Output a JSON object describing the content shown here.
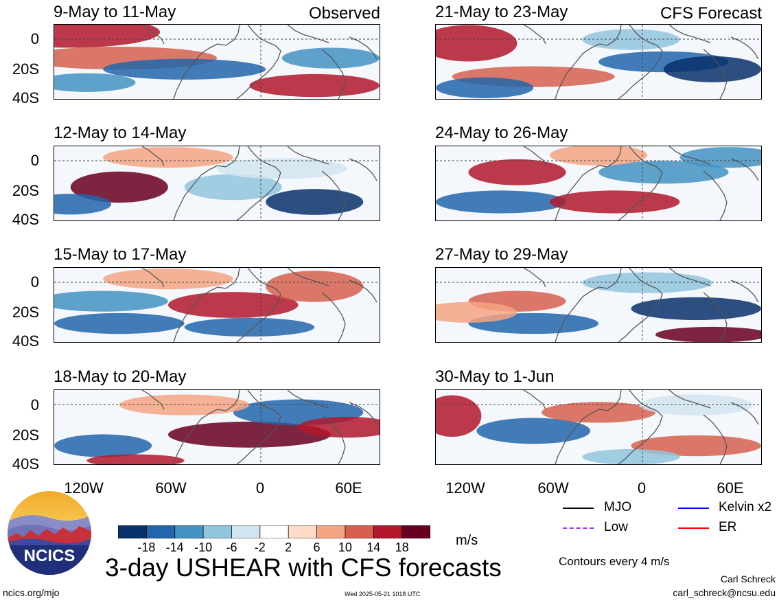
{
  "colors": {
    "scale": [
      "#08306b",
      "#2166ac",
      "#4393c3",
      "#92c5de",
      "#d1e5f0",
      "#ffffff",
      "#fddbc7",
      "#f4a582",
      "#d6604d",
      "#b2182b",
      "#67001f"
    ],
    "mjo": "#000000",
    "kelvin": "#0000ff",
    "low": "#9b30ff",
    "er": "#ff0000",
    "coast": "#555555"
  },
  "panels": [
    {
      "title": "9-May to 11-May",
      "tag": "Observed"
    },
    {
      "title": "12-May to 14-May",
      "tag": ""
    },
    {
      "title": "15-May to 17-May",
      "tag": ""
    },
    {
      "title": "18-May to 20-May",
      "tag": ""
    },
    {
      "title": "21-May to 23-May",
      "tag": "CFS Forecast"
    },
    {
      "title": "24-May to 26-May",
      "tag": ""
    },
    {
      "title": "27-May to 29-May",
      "tag": ""
    },
    {
      "title": "30-May to 1-Jun",
      "tag": ""
    }
  ],
  "axes": {
    "y_ticks": [
      "0",
      "20S",
      "40S"
    ],
    "x_ticks": [
      "120W",
      "60W",
      "0",
      "60E"
    ]
  },
  "colorbar": {
    "labels": [
      "-18",
      "-14",
      "-10",
      "-6",
      "-2",
      "2",
      "6",
      "10",
      "14",
      "18"
    ],
    "unit": "m/s"
  },
  "legend": {
    "mjo": "MJO",
    "kelvin": "Kelvin x2",
    "low": "Low",
    "er": "ER",
    "contours": "Contours every 4 m/s"
  },
  "footer": {
    "title": "3-day USHEAR with CFS forecasts",
    "logo_text": "NCICS",
    "url": "ncics.org/mjo",
    "timestamp": "Wed 2025-05-21 1018 UTC",
    "author": "Carl Schreck",
    "email": "carl_schreck@ncsu.edu"
  }
}
